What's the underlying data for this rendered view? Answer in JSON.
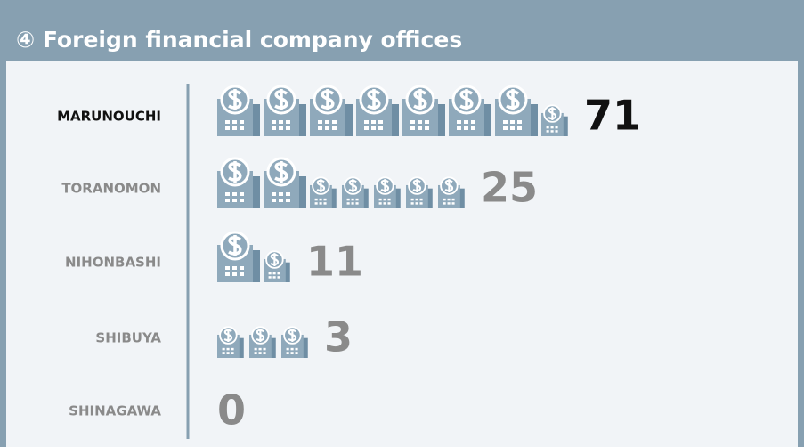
{
  "chart_data": {
    "type": "pictogram",
    "title": "④ Foreign financial company offices",
    "categories": [
      "MARUNOUCHI",
      "TORANOMON",
      "NIHONBASHI",
      "SHIBUYA",
      "SHINAGAWA"
    ],
    "values": [
      71,
      25,
      11,
      3,
      0
    ],
    "color": "#8fa9bb",
    "value_colors": [
      "#111111",
      "#8a8a8a",
      "#8a8a8a",
      "#8a8a8a",
      "#8a8a8a"
    ]
  }
}
